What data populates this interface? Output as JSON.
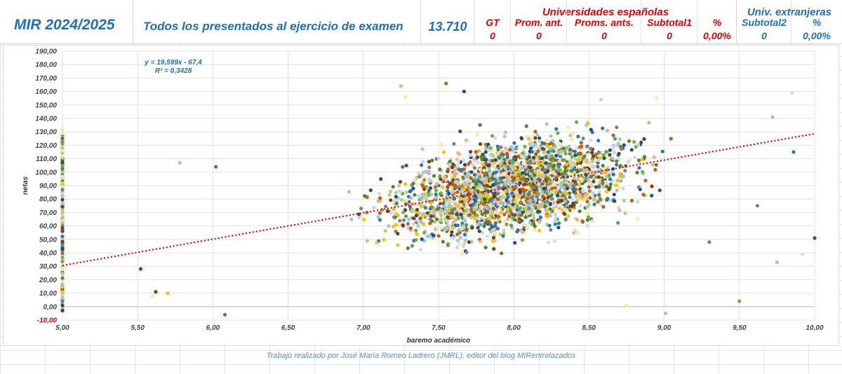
{
  "header": {
    "title": "MIR 2024/2025",
    "subtitle": "Todos los presentados al ejercicio de examen",
    "total": "13.710",
    "spanish_group": "Universidades españolas",
    "foreign_group": "Univ. extranjeras",
    "cols": [
      {
        "label": "GT",
        "value": "0"
      },
      {
        "label": "Prom. ant.",
        "value": "0"
      },
      {
        "label": "Proms. ants.",
        "value": "0"
      },
      {
        "label": "Subtotal1",
        "value": "0"
      },
      {
        "label": "%",
        "value": "0,00%"
      },
      {
        "label": "Subtotal2",
        "value": "0"
      },
      {
        "label": "%",
        "value": "0,00%"
      }
    ]
  },
  "chart_data": {
    "type": "scatter",
    "xlabel": "baremo académico",
    "ylabel": "netas",
    "xlim": [
      5.0,
      10.0
    ],
    "ylim": [
      -10,
      190
    ],
    "x_ticks": [
      "5,00",
      "5,50",
      "6,00",
      "6,50",
      "7,00",
      "7,50",
      "8,00",
      "8,50",
      "9,00",
      "9,50",
      "10,00"
    ],
    "y_ticks": [
      "-10,00",
      "0,00",
      "10,00",
      "20,00",
      "30,00",
      "40,00",
      "50,00",
      "60,00",
      "70,00",
      "80,00",
      "90,00",
      "100,00",
      "110,00",
      "120,00",
      "130,00",
      "140,00",
      "150,00",
      "160,00",
      "170,00",
      "180,00",
      "190,00"
    ],
    "trendline": {
      "slope": 19.599,
      "intercept": -67.4
    },
    "equation": "y = 19,599x - 67,4",
    "r2": "R² = 0,3428",
    "grid": true,
    "point_colors": [
      "#1f4e79",
      "#2e75b6",
      "#9dc3e6",
      "#70ad47",
      "#a9d18e",
      "#ffc000",
      "#ffe699",
      "#c55a11",
      "#843c0c",
      "#bdd7ee",
      "#548235",
      "#f4b183",
      "#7f7f7f",
      "#d9d9d9"
    ],
    "samples": [
      {
        "x": 5.78,
        "y": 107
      },
      {
        "x": 6.02,
        "y": 104
      },
      {
        "x": 7.25,
        "y": 164
      },
      {
        "x": 7.28,
        "y": 156
      },
      {
        "x": 7.55,
        "y": 166
      },
      {
        "x": 7.67,
        "y": 160
      },
      {
        "x": 9.85,
        "y": 159
      },
      {
        "x": 9.72,
        "y": 141
      },
      {
        "x": 9.86,
        "y": 115
      },
      {
        "x": 10.0,
        "y": 51
      },
      {
        "x": 9.92,
        "y": 39
      },
      {
        "x": 9.75,
        "y": 33
      },
      {
        "x": 9.62,
        "y": 75
      },
      {
        "x": 9.5,
        "y": 4
      },
      {
        "x": 5.6,
        "y": 8
      },
      {
        "x": 5.52,
        "y": 28
      },
      {
        "x": 5.62,
        "y": 11
      },
      {
        "x": 5.7,
        "y": 10
      },
      {
        "x": 6.08,
        "y": -6
      },
      {
        "x": 8.75,
        "y": 1
      },
      {
        "x": 8.58,
        "y": 154
      },
      {
        "x": 8.95,
        "y": 155
      },
      {
        "x": 9.3,
        "y": 48
      },
      {
        "x": 9.01,
        "y": -5
      }
    ]
  },
  "footer": "Trabajo realizado por José María Romeo Ladrero (JMRL), editor del blog MIRentrelazados"
}
